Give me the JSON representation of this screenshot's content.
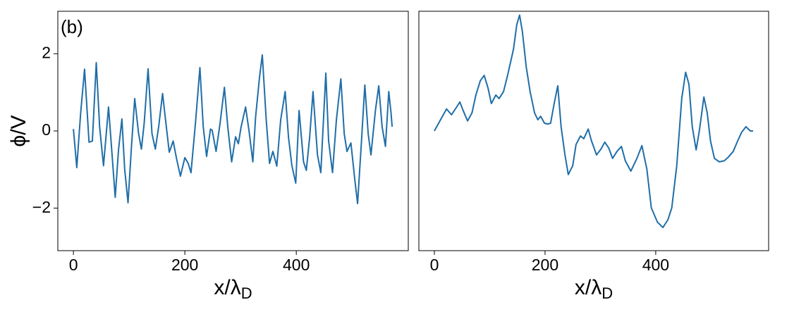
{
  "chart_data": [
    {
      "type": "line",
      "annotation": "(b)",
      "ylabel": "ϕ/V",
      "xlabel": "x/λ",
      "xlabel_sub": "D",
      "color": "#1f6ea8",
      "xlim": [
        -28,
        601
      ],
      "ylim": [
        -3.1,
        3.1
      ],
      "xticks": [
        0,
        200,
        400
      ],
      "yticks": [
        {
          "value": -2,
          "label": "−2"
        },
        0,
        2
      ],
      "x": [
        0,
        6,
        13,
        20,
        28,
        34,
        41,
        47,
        54,
        63,
        68,
        75,
        81,
        87,
        92,
        98,
        104,
        110,
        117,
        122,
        127,
        134,
        141,
        147,
        153,
        160,
        166,
        172,
        179,
        185,
        192,
        200,
        206,
        211,
        219,
        227,
        233,
        239,
        246,
        249,
        256,
        263,
        271,
        277,
        284,
        291,
        296,
        301,
        309,
        315,
        322,
        327,
        334,
        339,
        346,
        352,
        358,
        365,
        372,
        380,
        386,
        392,
        399,
        405,
        413,
        418,
        424,
        430,
        438,
        444,
        453,
        458,
        465,
        472,
        480,
        486,
        491,
        498,
        505,
        510,
        517,
        523,
        529,
        534,
        542,
        548,
        554,
        560,
        566,
        570,
        572
      ],
      "values": [
        0.05,
        -0.95,
        0.47,
        1.6,
        -0.29,
        -0.26,
        1.77,
        0.11,
        -0.9,
        0.62,
        -0.35,
        -1.72,
        -0.48,
        0.31,
        -0.99,
        -1.86,
        -0.44,
        0.84,
        -0.07,
        -0.47,
        0.2,
        1.61,
        -0.07,
        -0.47,
        0.11,
        0.97,
        0.2,
        -0.55,
        -0.26,
        -0.71,
        -1.17,
        -0.69,
        -0.84,
        -1.08,
        0.2,
        1.64,
        0.11,
        -0.66,
        0.05,
        0.02,
        -0.53,
        0.18,
        1.13,
        0.11,
        -0.8,
        -0.15,
        -0.33,
        0.11,
        0.62,
        0.02,
        -0.8,
        0.37,
        1.39,
        1.97,
        0.29,
        -0.84,
        -0.53,
        -0.91,
        0.29,
        1.02,
        -0.16,
        -0.89,
        -1.35,
        0.53,
        -0.8,
        -1.02,
        -0.16,
        1.02,
        -0.62,
        -1.08,
        1.5,
        -0.26,
        -1.08,
        0.29,
        1.35,
        -0.07,
        -0.53,
        -0.31,
        -1.26,
        -1.88,
        -0.26,
        1.19,
        -0.07,
        -0.62,
        0.53,
        1.17,
        0.11,
        -0.4,
        1.02,
        0.47,
        0.11
      ]
    },
    {
      "type": "line",
      "xlabel": "x/λ",
      "xlabel_sub": "D",
      "color": "#1f6ea8",
      "xlim": [
        -28,
        604
      ],
      "ylim": [
        -3.1,
        3.1
      ],
      "xticks": [
        0,
        200,
        400
      ],
      "x": [
        0,
        10,
        22,
        31,
        38,
        46,
        52,
        60,
        68,
        75,
        83,
        90,
        97,
        103,
        111,
        117,
        125,
        133,
        143,
        149,
        154,
        159,
        166,
        173,
        181,
        187,
        192,
        199,
        205,
        210,
        217,
        223,
        229,
        236,
        242,
        250,
        256,
        264,
        270,
        278,
        284,
        293,
        301,
        308,
        315,
        322,
        330,
        338,
        345,
        355,
        366,
        375,
        384,
        392,
        403,
        413,
        422,
        429,
        438,
        447,
        454,
        460,
        466,
        473,
        479,
        487,
        493,
        499,
        506,
        515,
        524,
        531,
        540,
        548,
        555,
        563,
        571,
        576
      ],
      "values": [
        0,
        0.26,
        0.57,
        0.42,
        0.57,
        0.75,
        0.53,
        0.26,
        0.47,
        0.93,
        1.3,
        1.44,
        1.11,
        0.71,
        0.93,
        0.84,
        1.02,
        1.48,
        2.12,
        2.76,
        3.0,
        2.58,
        1.66,
        1.02,
        0.47,
        0.29,
        0.38,
        0.2,
        0.18,
        0.2,
        0.75,
        1.17,
        0.11,
        -0.62,
        -1.13,
        -0.9,
        -0.35,
        -0.13,
        -0.2,
        0.05,
        -0.26,
        -0.62,
        -0.47,
        -0.29,
        -0.44,
        -0.71,
        -0.53,
        -0.4,
        -0.77,
        -1.04,
        -0.71,
        -0.38,
        -0.99,
        -1.99,
        -2.36,
        -2.5,
        -2.3,
        -1.99,
        -0.9,
        0.84,
        1.52,
        1.21,
        0.11,
        -0.49,
        0.02,
        0.88,
        0.47,
        -0.26,
        -0.71,
        -0.8,
        -0.77,
        -0.68,
        -0.53,
        -0.26,
        -0.04,
        0.11,
        0,
        0
      ]
    }
  ]
}
